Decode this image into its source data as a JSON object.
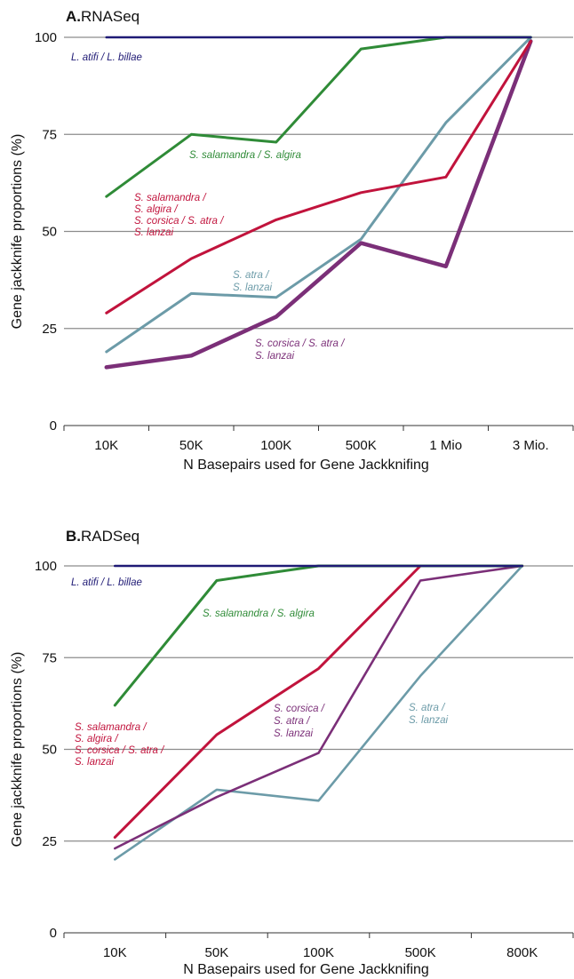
{
  "chart_data": [
    {
      "type": "line",
      "panel_label": "A.",
      "title": "RNASeq",
      "xlabel": "N Basepairs used for Gene Jackknifing",
      "ylabel": "Gene jackknife proportions (%)",
      "categories": [
        "10K",
        "50K",
        "100K",
        "500K",
        "1 Mio",
        "3 Mio."
      ],
      "ylim": [
        0,
        100
      ],
      "yticks": [
        0,
        25,
        50,
        75,
        100
      ],
      "grid": true,
      "series": [
        {
          "name": "L. atifi / L. billae",
          "color": "#1f1a75",
          "values": [
            100,
            100,
            100,
            100,
            100,
            100
          ]
        },
        {
          "name": "S. salamandra / S. algira",
          "color": "#2f8b37",
          "values": [
            59,
            75,
            73,
            97,
            100,
            100
          ]
        },
        {
          "name": "S. salamandra / S. algira / S. corsica / S. atra / S. lanzai",
          "color": "#c1133c",
          "values": [
            29,
            43,
            53,
            60,
            64,
            99
          ]
        },
        {
          "name": "S. atra / S. lanzai",
          "color": "#6c9ba8",
          "values": [
            19,
            34,
            33,
            48,
            78,
            100
          ]
        },
        {
          "name": "S. corsica / S. atra / S. lanzai",
          "color": "#7b2f78",
          "values": [
            15,
            18,
            28,
            47,
            41,
            99
          ]
        }
      ],
      "annotations": [
        {
          "series": 0,
          "lines": [
            "L. atifi / L. billae"
          ]
        },
        {
          "series": 1,
          "lines": [
            "S. salamandra / S. algira"
          ]
        },
        {
          "series": 2,
          "lines": [
            "S. salamandra /",
            "S. algira /",
            "S. corsica / S. atra /",
            "S. lanzai"
          ]
        },
        {
          "series": 3,
          "lines": [
            "S. atra /",
            "S. lanzai"
          ]
        },
        {
          "series": 4,
          "lines": [
            "S. corsica / S. atra /",
            "S. lanzai"
          ]
        }
      ]
    },
    {
      "type": "line",
      "panel_label": "B.",
      "title": "RADSeq",
      "xlabel": "N Basepairs used for Gene Jackknifing",
      "ylabel": "Gene jackknife proportions (%)",
      "categories": [
        "10K",
        "50K",
        "100K",
        "500K",
        "800K"
      ],
      "ylim": [
        0,
        100
      ],
      "yticks": [
        0,
        25,
        50,
        75,
        100
      ],
      "grid": true,
      "series": [
        {
          "name": "L. atifi / L. billae",
          "color": "#1f1a75",
          "values": [
            100,
            100,
            100,
            100,
            100
          ]
        },
        {
          "name": "S. salamandra / S. algira",
          "color": "#2f8b37",
          "values": [
            62,
            96,
            100,
            100,
            100
          ]
        },
        {
          "name": "S. salamandra / S. algira / S. corsica / S. atra / S. lanzai",
          "color": "#c1133c",
          "values": [
            26,
            54,
            72,
            100,
            100
          ]
        },
        {
          "name": "S. corsica / S. atra / S. lanzai",
          "color": "#7b2f78",
          "values": [
            23,
            37,
            49,
            96,
            100
          ]
        },
        {
          "name": "S. atra / S. lanzai",
          "color": "#6c9ba8",
          "values": [
            20,
            39,
            36,
            70,
            100
          ]
        }
      ],
      "annotations": [
        {
          "series": 0,
          "lines": [
            "L. atifi / L. billae"
          ]
        },
        {
          "series": 1,
          "lines": [
            "S. salamandra / S. algira"
          ]
        },
        {
          "series": 2,
          "lines": [
            "S. salamandra /",
            "S. algira /",
            "S. corsica / S. atra /",
            "S. lanzai"
          ]
        },
        {
          "series": 3,
          "lines": [
            "S. corsica /",
            "S. atra /",
            "S. lanzai"
          ]
        },
        {
          "series": 4,
          "lines": [
            "S. atra /",
            "S. lanzai"
          ]
        }
      ]
    }
  ]
}
